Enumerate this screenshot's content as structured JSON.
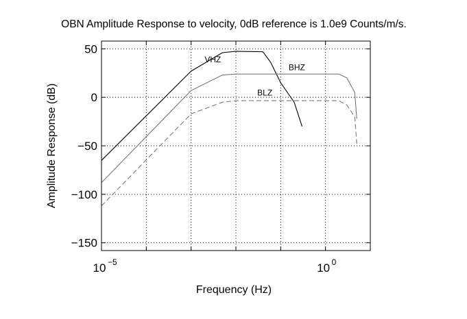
{
  "chart_data": {
    "type": "line",
    "title": "OBN Amplitude Response to velocity, 0dB reference is 1.0e9 Counts/m/s.",
    "xlabel": "Frequency (Hz)",
    "ylabel": "Amplitude Response (dB)",
    "x_scale": "log",
    "xlim": [
      1e-05,
      10
    ],
    "ylim": [
      -158,
      58
    ],
    "x_ticks": [
      1e-05,
      1
    ],
    "x_tick_labels": [
      {
        "base": "10",
        "exp": "−5"
      },
      {
        "base": "10",
        "exp": "0"
      }
    ],
    "y_ticks": [
      50,
      0,
      -50,
      -100,
      -150
    ],
    "y_tick_labels": [
      "50",
      "0",
      "−50",
      "−100",
      "−150"
    ],
    "grid": true,
    "series": [
      {
        "name": "VHZ",
        "color": "#000000",
        "dash": "solid",
        "label_at": [
          0.002,
          36
        ],
        "points": [
          [
            1e-05,
            -65
          ],
          [
            0.001,
            27
          ],
          [
            0.005,
            46
          ],
          [
            0.01,
            47.5
          ],
          [
            0.04,
            47
          ],
          [
            0.06,
            36
          ],
          [
            0.1,
            15
          ],
          [
            0.2,
            -5
          ],
          [
            0.3,
            -30
          ]
        ]
      },
      {
        "name": "BHZ",
        "color": "#777777",
        "dash": "solid",
        "label_at": [
          0.15,
          28
        ],
        "points": [
          [
            1e-05,
            -88
          ],
          [
            0.001,
            7
          ],
          [
            0.005,
            23
          ],
          [
            0.01,
            24
          ],
          [
            2,
            24
          ],
          [
            3,
            20
          ],
          [
            4.5,
            5
          ],
          [
            5,
            -22
          ]
        ]
      },
      {
        "name": "BLZ",
        "color": "#777777",
        "dash": "dashed",
        "label_at": [
          0.03,
          2
        ],
        "points": [
          [
            1e-05,
            -112
          ],
          [
            0.001,
            -17
          ],
          [
            0.005,
            -5
          ],
          [
            0.01,
            -3.5
          ],
          [
            2,
            -3.5
          ],
          [
            3,
            -8
          ],
          [
            4.5,
            -20
          ],
          [
            5,
            -48
          ]
        ]
      }
    ]
  }
}
